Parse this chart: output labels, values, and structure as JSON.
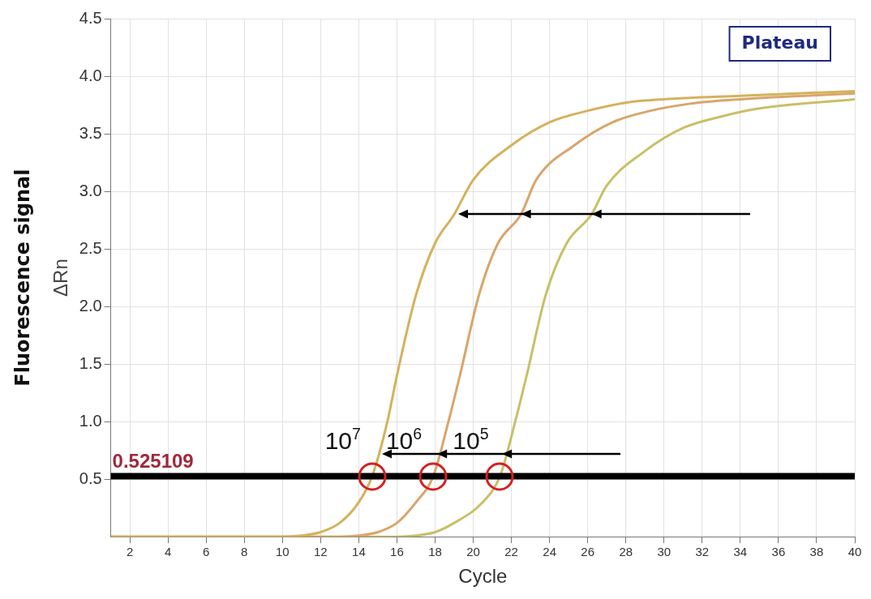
{
  "chart_data": {
    "type": "line",
    "xlabel": "Cycle",
    "ylabel": "ΔRn",
    "xlim": [
      1,
      40
    ],
    "xticks": [
      2,
      4,
      6,
      8,
      10,
      12,
      14,
      16,
      18,
      20,
      22,
      24,
      26,
      28,
      30,
      32,
      34,
      36,
      38,
      40
    ],
    "ylim": [
      0,
      4.5
    ],
    "yticks": [
      0.5,
      {
        "value": 1,
        "label": "1.0"
      },
      1.5,
      {
        "value": 2,
        "label": "2.0"
      },
      2.5,
      {
        "value": 3,
        "label": "3.0"
      },
      3.5,
      {
        "value": 4,
        "label": "4.0"
      },
      4.5
    ],
    "grid": true,
    "legend": false,
    "marker": "none",
    "line_style": "solid",
    "series": [
      {
        "color": "#d4b25c",
        "x": [
          1,
          10,
          11,
          12,
          13,
          14,
          14.7,
          15.5,
          16,
          17,
          18,
          19,
          20,
          22,
          24,
          26,
          28,
          30,
          34,
          40
        ],
        "values": [
          0,
          0,
          0.01,
          0.04,
          0.12,
          0.3,
          0.525,
          1.0,
          1.4,
          2.1,
          2.55,
          2.8,
          3.1,
          3.4,
          3.6,
          3.7,
          3.77,
          3.8,
          3.83,
          3.87
        ]
      },
      {
        "color": "#d9a56a",
        "x": [
          1,
          13,
          14,
          15,
          16,
          17,
          17.9,
          18.7,
          19.3,
          20.3,
          21.3,
          22.5,
          23.3,
          25.3,
          27.3,
          29.3,
          31.3,
          34,
          40
        ],
        "values": [
          0,
          0,
          0.01,
          0.04,
          0.12,
          0.3,
          0.525,
          1.0,
          1.4,
          2.1,
          2.55,
          2.8,
          3.1,
          3.4,
          3.6,
          3.7,
          3.76,
          3.8,
          3.85
        ]
      },
      {
        "color": "#c9bf68",
        "x": [
          1,
          16,
          17,
          18,
          19,
          20.5,
          21.4,
          22.2,
          22.8,
          23.8,
          24.9,
          26.2,
          27,
          29,
          31,
          33,
          35,
          40
        ],
        "values": [
          0,
          0,
          0.01,
          0.04,
          0.12,
          0.3,
          0.525,
          1.0,
          1.4,
          2.1,
          2.55,
          2.8,
          3.05,
          3.35,
          3.55,
          3.65,
          3.72,
          3.8
        ]
      }
    ],
    "ref_lines": [
      {
        "axis": "y",
        "value": 0.525109,
        "label": "0.525109",
        "color": "#000000"
      }
    ],
    "annotations": [
      "Fluorescence signal",
      "Plateau",
      "10$^{7}$",
      "10$^{6}$",
      "10$^{5}$"
    ]
  }
}
